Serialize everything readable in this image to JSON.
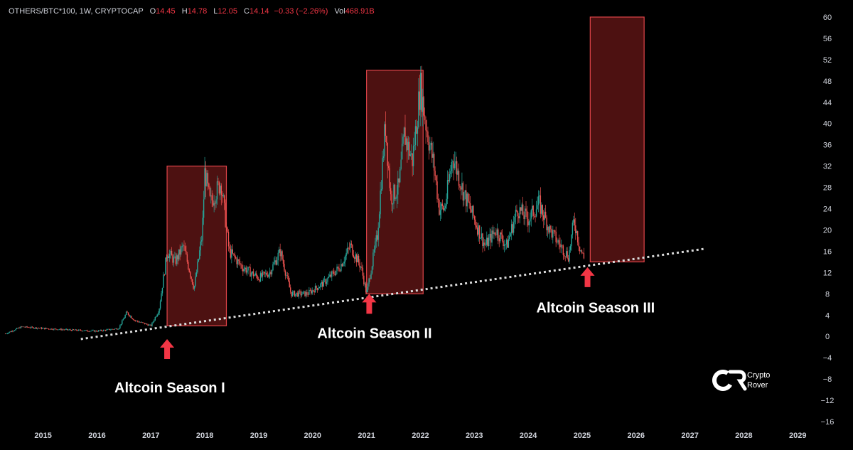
{
  "header": {
    "symbol": "OTHERS/BTC*100, 1W, CRYPTOCAP",
    "open_label": "O",
    "open": "14.45",
    "high_label": "H",
    "high": "14.78",
    "low_label": "L",
    "low": "12.05",
    "close_label": "C",
    "close": "14.14",
    "change": "−0.33 (−2.26%)",
    "vol_label": "Vol",
    "vol": "468.91B"
  },
  "logo": {
    "line1": "Crypto",
    "line2": "Rover"
  },
  "colors": {
    "up": "#26a69a",
    "down": "#ef5350",
    "box_fill": "#5a1414",
    "box_stroke": "#e0454a",
    "arrow": "#f23645",
    "trendline": "#d9d9d9"
  },
  "chart_data": {
    "type": "line",
    "title": "OTHERS/BTC*100, 1W, CRYPTOCAP",
    "y_ticks": [
      60,
      56,
      52,
      48,
      44,
      40,
      36,
      32,
      28,
      24,
      20,
      16,
      12,
      8,
      4,
      0,
      -4,
      -8,
      -12,
      -16
    ],
    "x_ticks": [
      "2015",
      "2016",
      "2017",
      "2018",
      "2019",
      "2020",
      "2021",
      "2022",
      "2023",
      "2024",
      "2025",
      "2026",
      "2027",
      "2028",
      "2029"
    ],
    "ylim": [
      -16,
      60
    ],
    "series": [
      {
        "x": [
          2014.3,
          2014.6,
          2015.0,
          2015.5,
          2016.0,
          2016.4,
          2016.55,
          2016.7,
          2017.0,
          2017.15,
          2017.3,
          2017.45,
          2017.6,
          2017.8,
          2017.95,
          2018.0,
          2018.1,
          2018.3,
          2018.45,
          2018.7,
          2019.0,
          2019.2,
          2019.4,
          2019.6,
          2019.9,
          2020.2,
          2020.5,
          2020.7,
          2020.9,
          2021.0,
          2021.2,
          2021.35,
          2021.45,
          2021.6,
          2021.7,
          2021.85,
          2022.0,
          2022.1,
          2022.25,
          2022.35,
          2022.45,
          2022.6,
          2022.8,
          2023.0,
          2023.2,
          2023.4,
          2023.6,
          2023.8,
          2024.0,
          2024.2,
          2024.4,
          2024.6,
          2024.75,
          2024.85,
          2024.95,
          2025.05
        ],
        "y": [
          0.5,
          1.8,
          1.5,
          1.2,
          1.0,
          1.5,
          4.5,
          3.0,
          2.0,
          5.0,
          16.0,
          14.0,
          17.0,
          9.0,
          19.0,
          31.0,
          25.0,
          29.0,
          16.0,
          13.0,
          11.0,
          12.0,
          16.0,
          8.0,
          8.0,
          10.0,
          13.0,
          17.0,
          13.0,
          8.0,
          19.0,
          40.0,
          26.0,
          28.0,
          38.0,
          33.0,
          47.0,
          40.0,
          32.0,
          24.0,
          24.0,
          34.0,
          27.0,
          22.0,
          17.0,
          20.0,
          17.0,
          24.0,
          22.0,
          25.0,
          20.0,
          17.0,
          15.0,
          22.0,
          17.0,
          14.14
        ]
      }
    ],
    "boxes": [
      {
        "x0": 2017.3,
        "x1": 2018.4,
        "y0": 2,
        "y1": 32
      },
      {
        "x0": 2021.0,
        "x1": 2022.05,
        "y0": 8,
        "y1": 50
      },
      {
        "x0": 2025.15,
        "x1": 2026.15,
        "y0": 14,
        "y1": 60
      }
    ],
    "trendline": {
      "x0": 2015.7,
      "x1": 2027.3,
      "y0": -0.5,
      "y1": 16.5
    },
    "annotations": [
      {
        "text": "Altcoin Season I",
        "x": 2017.35,
        "y": -10.5,
        "arrow_x": 2017.3,
        "arrow_y": -0.5
      },
      {
        "text": "Altcoin Season II",
        "x": 2021.15,
        "y": -0.3,
        "arrow_x": 2021.05,
        "arrow_y": 8.0
      },
      {
        "text": "Altcoin Season III",
        "x": 2025.25,
        "y": 4.5,
        "arrow_x": 2025.1,
        "arrow_y": 13.0
      }
    ],
    "legend": "none",
    "grid": false
  }
}
